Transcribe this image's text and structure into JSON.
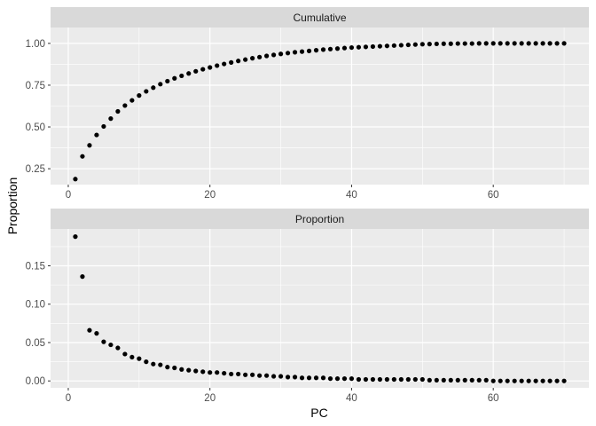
{
  "chart_data": {
    "type": "scatter",
    "xlabel": "PC",
    "ylabel": "Proportion",
    "colors": {
      "panel_bg": "#ebebeb",
      "strip_bg": "#d9d9d9",
      "grid": "#ffffff",
      "point": "#000000"
    },
    "grid": true,
    "x_ticks": [
      0,
      20,
      40,
      60
    ],
    "xlim": [
      -2.5,
      73.5
    ],
    "panels": [
      {
        "strip": "Cumulative",
        "ylim": [
          0.155,
          1.095
        ],
        "y_ticks": [
          0.25,
          0.5,
          0.75,
          1.0
        ],
        "y_tick_labels": [
          "0.25",
          "0.50",
          "0.75",
          "1.00"
        ],
        "x": [
          1,
          2,
          3,
          4,
          5,
          6,
          7,
          8,
          9,
          10,
          11,
          12,
          13,
          14,
          15,
          16,
          17,
          18,
          19,
          20,
          21,
          22,
          23,
          24,
          25,
          26,
          27,
          28,
          29,
          30,
          31,
          32,
          33,
          34,
          35,
          36,
          37,
          38,
          39,
          40,
          41,
          42,
          43,
          44,
          45,
          46,
          47,
          48,
          49,
          50,
          51,
          52,
          53,
          54,
          55,
          56,
          57,
          58,
          59,
          60,
          61,
          62,
          63,
          64,
          65,
          66,
          67,
          68,
          69,
          70
        ],
        "y": [
          0.188,
          0.324,
          0.39,
          0.452,
          0.503,
          0.55,
          0.593,
          0.628,
          0.659,
          0.688,
          0.713,
          0.735,
          0.756,
          0.774,
          0.791,
          0.806,
          0.82,
          0.833,
          0.845,
          0.856,
          0.867,
          0.877,
          0.886,
          0.895,
          0.903,
          0.911,
          0.918,
          0.925,
          0.931,
          0.937,
          0.942,
          0.947,
          0.951,
          0.955,
          0.959,
          0.963,
          0.966,
          0.969,
          0.972,
          0.975,
          0.977,
          0.979,
          0.981,
          0.983,
          0.985,
          0.987,
          0.989,
          0.991,
          0.993,
          0.995,
          0.996,
          0.997,
          0.998,
          0.998,
          0.999,
          0.999,
          0.999,
          1.0,
          1.0,
          1.0,
          1.0,
          1.0,
          1.0,
          1.0,
          1.0,
          1.0,
          1.0,
          1.0,
          1.0,
          1.0
        ]
      },
      {
        "strip": "Proportion",
        "ylim": [
          -0.009,
          0.198
        ],
        "y_ticks": [
          0.0,
          0.05,
          0.1,
          0.15
        ],
        "y_tick_labels": [
          "0.00",
          "0.05",
          "0.10",
          "0.15"
        ],
        "x": [
          1,
          2,
          3,
          4,
          5,
          6,
          7,
          8,
          9,
          10,
          11,
          12,
          13,
          14,
          15,
          16,
          17,
          18,
          19,
          20,
          21,
          22,
          23,
          24,
          25,
          26,
          27,
          28,
          29,
          30,
          31,
          32,
          33,
          34,
          35,
          36,
          37,
          38,
          39,
          40,
          41,
          42,
          43,
          44,
          45,
          46,
          47,
          48,
          49,
          50,
          51,
          52,
          53,
          54,
          55,
          56,
          57,
          58,
          59,
          60,
          61,
          62,
          63,
          64,
          65,
          66,
          67,
          68,
          69,
          70
        ],
        "y": [
          0.188,
          0.136,
          0.066,
          0.062,
          0.051,
          0.047,
          0.043,
          0.035,
          0.031,
          0.029,
          0.025,
          0.022,
          0.021,
          0.018,
          0.017,
          0.015,
          0.014,
          0.013,
          0.012,
          0.011,
          0.011,
          0.01,
          0.009,
          0.009,
          0.008,
          0.008,
          0.007,
          0.007,
          0.006,
          0.006,
          0.005,
          0.005,
          0.004,
          0.004,
          0.004,
          0.004,
          0.003,
          0.003,
          0.003,
          0.003,
          0.002,
          0.002,
          0.002,
          0.002,
          0.002,
          0.002,
          0.002,
          0.002,
          0.002,
          0.002,
          0.001,
          0.001,
          0.001,
          0.001,
          0.001,
          0.001,
          0.001,
          0.001,
          0.001,
          0.0,
          0.0,
          0.0,
          0.0,
          0.0,
          0.0,
          0.0,
          0.0,
          0.0,
          0.0,
          0.0
        ]
      }
    ]
  }
}
